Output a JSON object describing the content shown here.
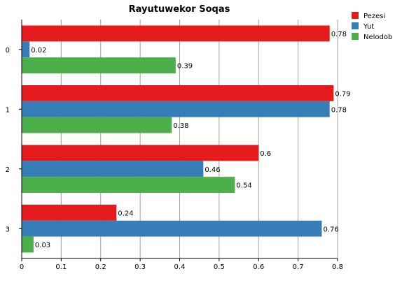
{
  "chart_data": {
    "type": "bar",
    "orientation": "horizontal",
    "title": "Rayutuwekor Soqas",
    "xlabel": "",
    "ylabel": "",
    "categories": [
      "0",
      "1",
      "2",
      "3"
    ],
    "series": [
      {
        "name": "Pezesi",
        "values": [
          0.78,
          0.79,
          0.6,
          0.24
        ],
        "labels": [
          "0.78",
          "0.79",
          "0.6",
          "0.24"
        ],
        "color": "#e41a1c"
      },
      {
        "name": "Yut",
        "values": [
          0.02,
          0.78,
          0.46,
          0.76
        ],
        "labels": [
          "0.02",
          "0.78",
          "0.46",
          "0.76"
        ],
        "color": "#377eb8"
      },
      {
        "name": "Nelodob",
        "values": [
          0.39,
          0.38,
          0.54,
          0.03
        ],
        "labels": [
          "0.39",
          "0.38",
          "0.54",
          "0.03"
        ],
        "color": "#4daf4a"
      }
    ],
    "xlim": [
      0,
      0.8
    ],
    "xticks": [
      "0",
      "0.1",
      "0.2",
      "0.3",
      "0.4",
      "0.5",
      "0.6",
      "0.7",
      "0.8"
    ],
    "grid": "vertical",
    "legend_position": "top-right"
  }
}
